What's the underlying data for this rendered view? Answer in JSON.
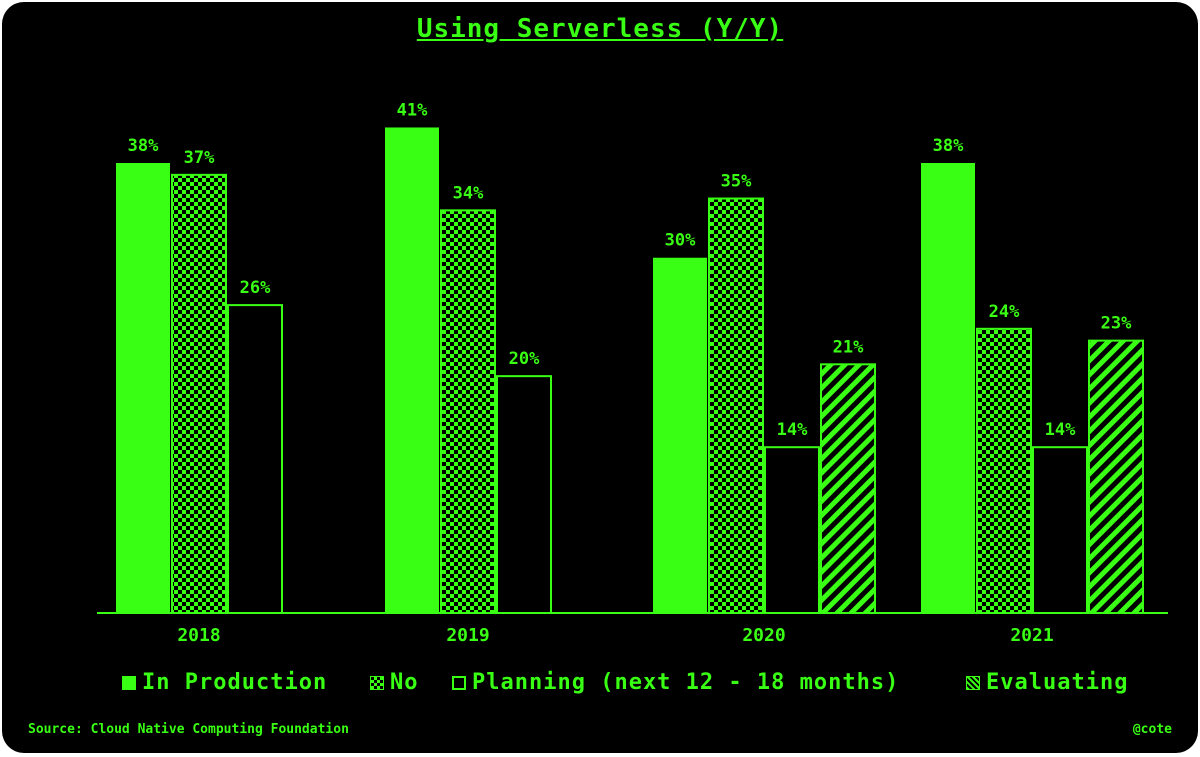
{
  "colors": {
    "background": "#000000",
    "accent": "#39ff14"
  },
  "legend": {
    "items": [
      {
        "label": "In Production",
        "pattern": "solid"
      },
      {
        "label": "No",
        "pattern": "checker"
      },
      {
        "label": "Planning (next 12 - 18 months)",
        "pattern": "outline"
      },
      {
        "label": "Evaluating",
        "pattern": "stripes"
      }
    ]
  },
  "footer": {
    "source": "Source: Cloud Native Computing Foundation",
    "handle": "@cote"
  },
  "chart_data": {
    "type": "bar",
    "title": "Using Serverless (Y/Y)",
    "xlabel": "",
    "ylabel": "",
    "categories": [
      "2018",
      "2019",
      "2020",
      "2021"
    ],
    "ylim": [
      0,
      45
    ],
    "grid": false,
    "legend_position": "bottom",
    "value_suffix": "%",
    "series": [
      {
        "name": "In Production",
        "values": [
          38,
          41,
          30,
          38
        ]
      },
      {
        "name": "No",
        "values": [
          37,
          34,
          35,
          24
        ]
      },
      {
        "name": "Planning (next 12 - 18 months)",
        "values": [
          26,
          20,
          14,
          14
        ]
      },
      {
        "name": "Evaluating",
        "values": [
          null,
          null,
          21,
          23
        ]
      }
    ]
  }
}
